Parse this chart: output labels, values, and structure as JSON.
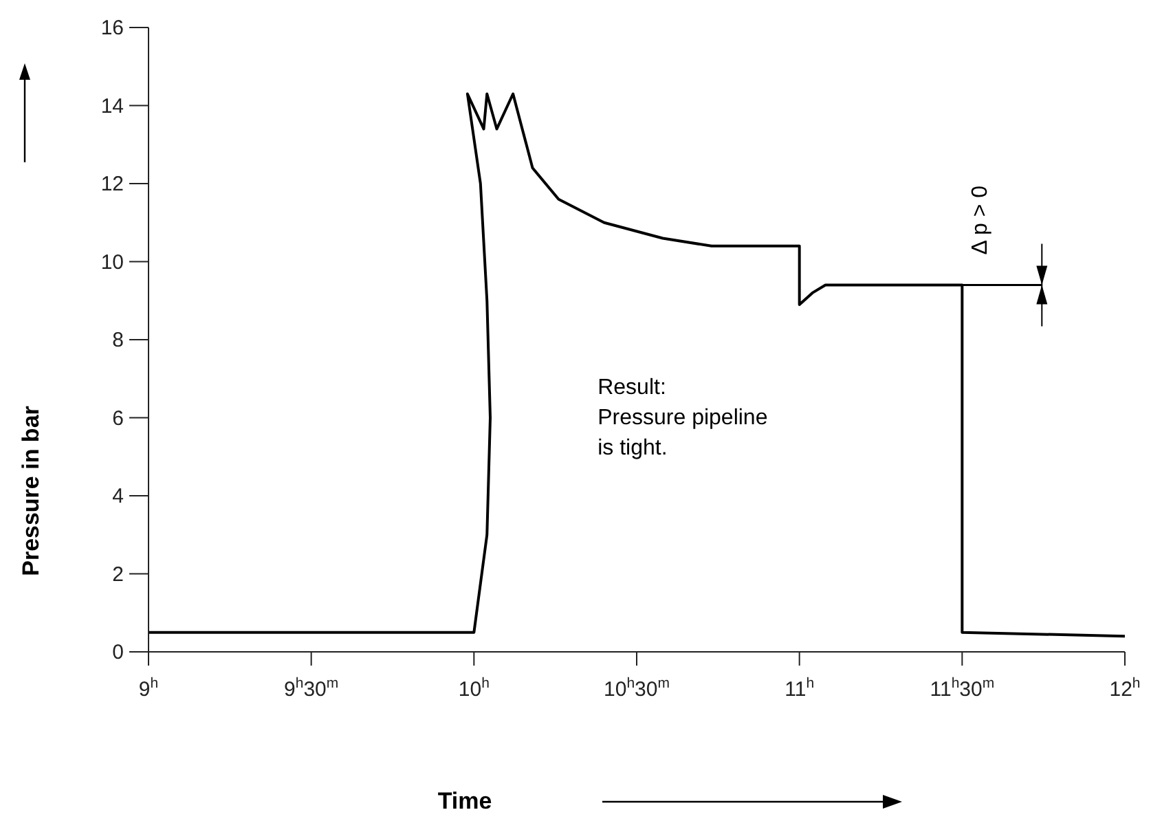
{
  "chart_data": {
    "type": "line",
    "xlabel": "Time",
    "ylabel": "Pressure in bar",
    "x": [
      9,
      10,
      10.04,
      10.05,
      10.04,
      10.02,
      9.98,
      10.03,
      10.04,
      10.07,
      10.12,
      10.18,
      10.26,
      10.4,
      10.58,
      10.73,
      11.0,
      11.0,
      11.04,
      11.08,
      11.5,
      11.5,
      12.0
    ],
    "values": [
      0.5,
      0.5,
      3,
      6,
      9,
      12,
      14.3,
      13.4,
      14.3,
      13.4,
      14.3,
      12.4,
      11.6,
      11.0,
      10.6,
      10.4,
      10.4,
      8.9,
      9.2,
      9.4,
      9.4,
      0.5,
      0.4
    ],
    "color": "#000000",
    "xlim": [
      9,
      12
    ],
    "xticks": [
      {
        "value": 9,
        "label": "9$^{h}$"
      },
      {
        "value": 9.5,
        "label": "9$^{h}$30$^{m}$"
      },
      {
        "value": 10,
        "label": "10$^{h}$"
      },
      {
        "value": 10.5,
        "label": "10$^{h}$30$^{m}$"
      },
      {
        "value": 11,
        "label": "11$^{h}$"
      },
      {
        "value": 11.5,
        "label": "11$^{h}$30$^{m}$"
      },
      {
        "value": 12,
        "label": "12$^{h}$"
      }
    ],
    "ylim": [
      0,
      16
    ],
    "yticks": [
      0,
      2,
      4,
      6,
      8,
      10,
      12,
      14,
      16
    ],
    "grid": false,
    "marker": "none",
    "line_style": "solid",
    "annotations": [
      "Result:\nPressure pipeline\nis tight.",
      "Δ p > 0"
    ]
  }
}
